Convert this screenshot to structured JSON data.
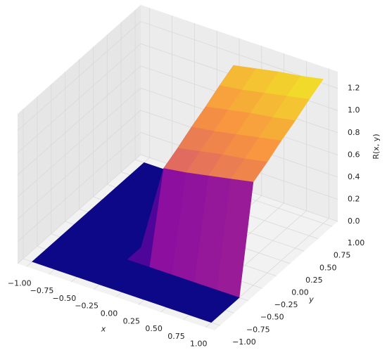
{
  "chart_data": {
    "type": "surface",
    "x_label": "x",
    "y_label": "y",
    "z_label": "R(x, y)",
    "colormap": "plasma",
    "x": [
      -1,
      -0.75,
      -0.5,
      -0.25,
      0,
      0.25,
      0.5,
      0.75,
      1
    ],
    "y": [
      -1,
      -0.75,
      -0.5,
      -0.25,
      0,
      0.25,
      0.5,
      0.75,
      1
    ],
    "z": [
      [
        0,
        0,
        0,
        0,
        0,
        0,
        0,
        0,
        0
      ],
      [
        0,
        0,
        0,
        0,
        0,
        0,
        0,
        0,
        0
      ],
      [
        0,
        0,
        0,
        0,
        0,
        0,
        0,
        0,
        0
      ],
      [
        0,
        0,
        0,
        0,
        0.78,
        0.81,
        0.85,
        0.89,
        0.93
      ],
      [
        0,
        0,
        0,
        0,
        0.85,
        0.89,
        0.93,
        0.96,
        1.0
      ],
      [
        0,
        0,
        0,
        0,
        0.93,
        0.96,
        1.0,
        1.04,
        1.08
      ],
      [
        0,
        0,
        0,
        0,
        1.0,
        1.04,
        1.08,
        1.11,
        1.15
      ],
      [
        0,
        0,
        0,
        0,
        1.08,
        1.11,
        1.15,
        1.19,
        1.23
      ],
      [
        0,
        0,
        0,
        0,
        1.15,
        1.19,
        1.23,
        1.26,
        1.3
      ]
    ],
    "xlim": [
      -1.1,
      1.1
    ],
    "ylim": [
      -1.1,
      1.1
    ],
    "zlim": [
      0,
      1.35
    ],
    "xticks": [
      {
        "value": -1,
        "label": "−1.00"
      },
      {
        "value": -0.75,
        "label": "−0.75"
      },
      {
        "value": -0.5,
        "label": "−0.50"
      },
      {
        "value": -0.25,
        "label": "−0.25"
      },
      {
        "value": 0,
        "label": "0.00"
      },
      {
        "value": 0.25,
        "label": "0.25"
      },
      {
        "value": 0.5,
        "label": "0.50"
      },
      {
        "value": 0.75,
        "label": "0.75"
      },
      {
        "value": 1,
        "label": "1.00"
      }
    ],
    "yticks": [
      {
        "value": -1,
        "label": "−1.00"
      },
      {
        "value": -0.75,
        "label": "−0.75"
      },
      {
        "value": -0.5,
        "label": "−0.50"
      },
      {
        "value": -0.25,
        "label": "−0.25"
      },
      {
        "value": 0,
        "label": "0.00"
      },
      {
        "value": 0.25,
        "label": "0.25"
      },
      {
        "value": 0.5,
        "label": "0.50"
      },
      {
        "value": 0.75,
        "label": "0.75"
      },
      {
        "value": 1,
        "label": "1.00"
      }
    ],
    "zticks": [
      {
        "value": 0,
        "label": "0.0"
      },
      {
        "value": 0.2,
        "label": "0.2"
      },
      {
        "value": 0.4,
        "label": "0.4"
      },
      {
        "value": 0.6,
        "label": "0.6"
      },
      {
        "value": 0.8,
        "label": "0.8"
      },
      {
        "value": 1,
        "label": "1.0"
      },
      {
        "value": 1.2,
        "label": "1.2"
      }
    ],
    "grid": true
  }
}
